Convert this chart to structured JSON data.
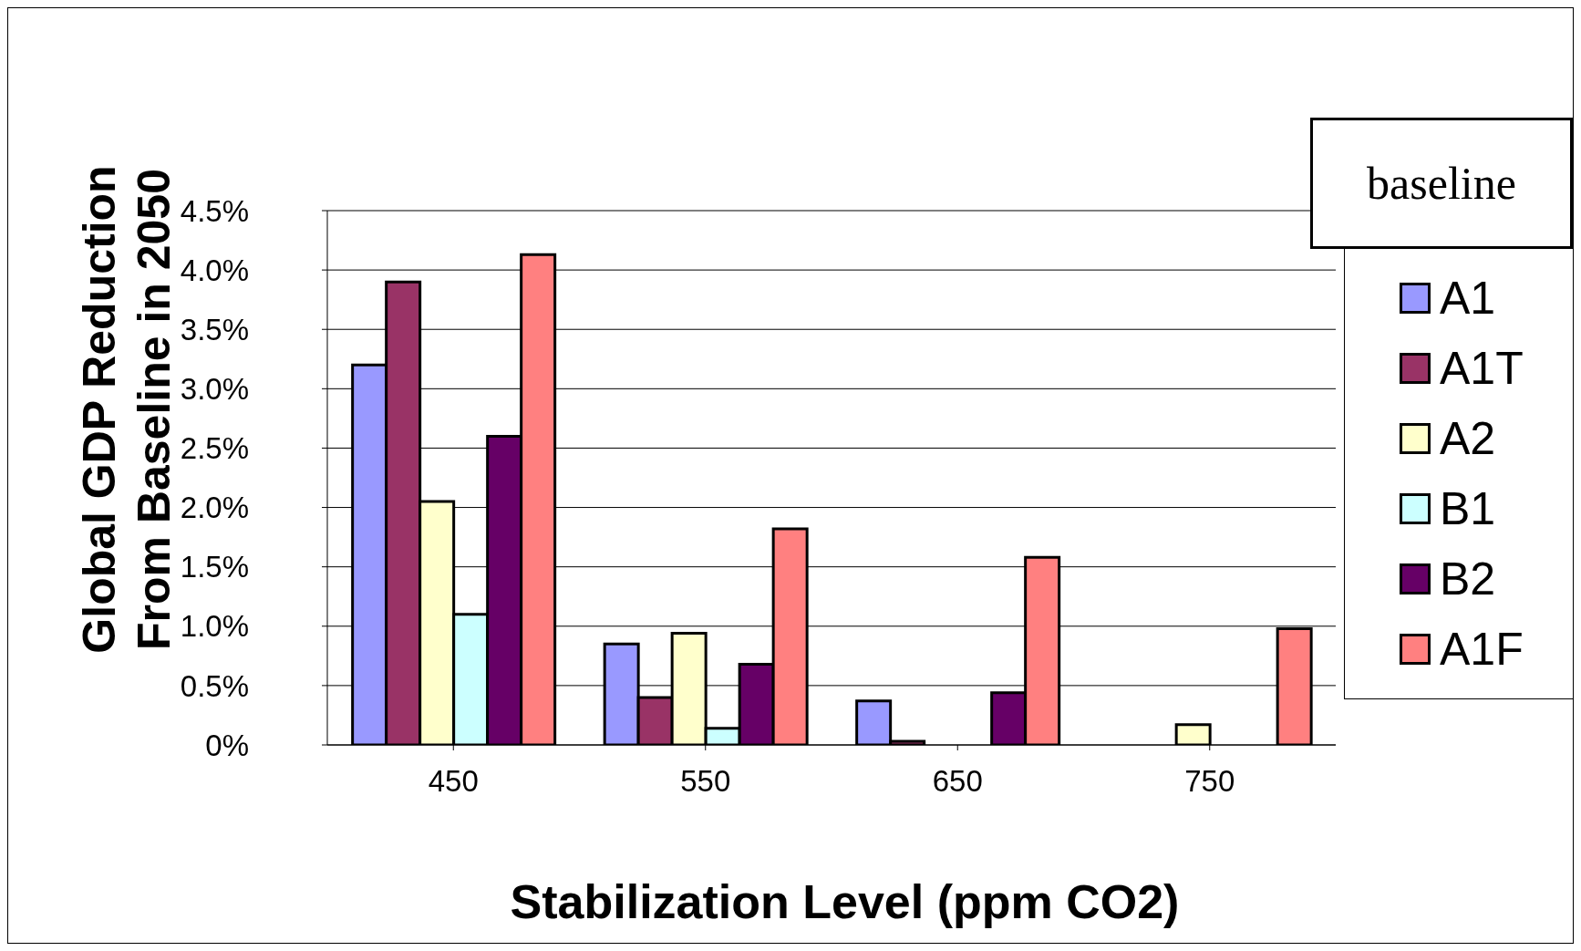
{
  "chart_data": {
    "type": "bar",
    "xlabel": "Stabilization Level (ppm CO2)",
    "ylabel": "Global GDP Reduction\nFrom Baseline in 2050",
    "legend_title": "baseline",
    "categories": [
      "450",
      "550",
      "650",
      "750"
    ],
    "series": [
      {
        "name": "A1",
        "color": "#9999ff",
        "values": [
          3.2,
          0.85,
          0.37,
          0
        ]
      },
      {
        "name": "A1T",
        "color": "#993366",
        "values": [
          3.9,
          0.4,
          0.03,
          0
        ]
      },
      {
        "name": "A2",
        "color": "#ffffcc",
        "values": [
          2.05,
          0.94,
          0,
          0.17
        ]
      },
      {
        "name": "B1",
        "color": "#ccffff",
        "values": [
          1.1,
          0.14,
          0,
          0
        ]
      },
      {
        "name": "B2",
        "color": "#660066",
        "values": [
          2.6,
          0.68,
          0.44,
          0
        ]
      },
      {
        "name": "A1F",
        "color": "#ff8080",
        "values": [
          4.13,
          1.82,
          1.58,
          0.98
        ]
      }
    ],
    "ylim": [
      0,
      4.5
    ],
    "yticks": [
      {
        "value": 0,
        "label": "0%"
      },
      {
        "value": 0.5,
        "label": "0.5%"
      },
      {
        "value": 1,
        "label": "1.0%"
      },
      {
        "value": 1.5,
        "label": "1.5%"
      },
      {
        "value": 2,
        "label": "2.0%"
      },
      {
        "value": 2.5,
        "label": "2.5%"
      },
      {
        "value": 3,
        "label": "3.0%"
      },
      {
        "value": 3.5,
        "label": "3.5%"
      },
      {
        "value": 4,
        "label": "4.0%"
      },
      {
        "value": 4.5,
        "label": "4.5%"
      }
    ],
    "grid": "y",
    "legend": "right"
  }
}
